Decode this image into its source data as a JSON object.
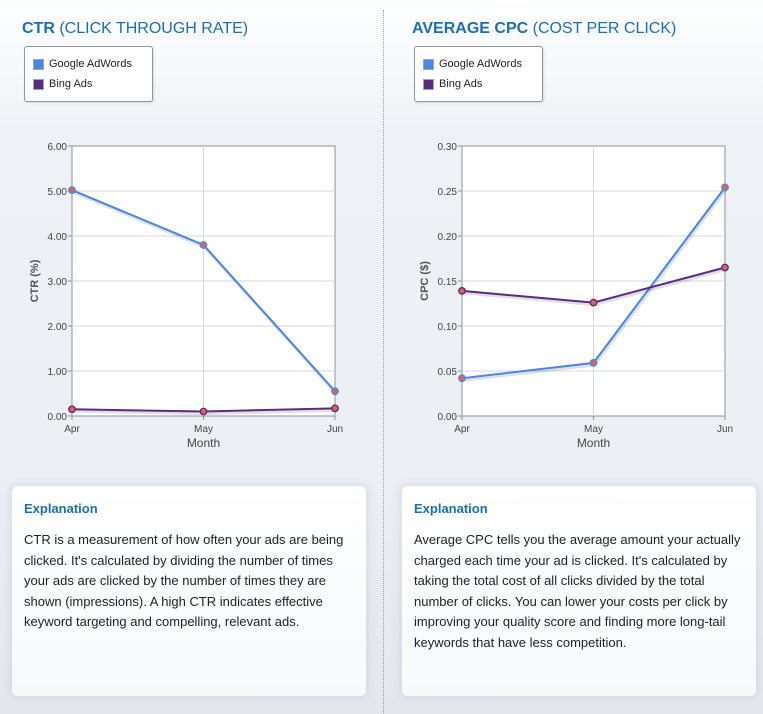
{
  "colors": {
    "google": "#4a86e8",
    "bing": "#5b2a86",
    "title": "#1a6fb5",
    "marker_fill": "#e0654a"
  },
  "ctr": {
    "title_bold": "CTR",
    "title_rest": " (CLICK THROUGH RATE)",
    "legend": [
      "Google AdWords",
      "Bing Ads"
    ],
    "explanation_heading": "Explanation",
    "explanation_text": "CTR is a measurement of how often your ads are being clicked. It's calculated by dividing the number of times your ads are clicked by the number of times they are shown (impressions). A high CTR indicates effective keyword targeting and compelling, relevant ads."
  },
  "cpc": {
    "title_bold": "AVERAGE CPC",
    "title_rest": " (COST PER CLICK)",
    "legend": [
      "Google AdWords",
      "Bing Ads"
    ],
    "explanation_heading": "Explanation",
    "explanation_text": "Average CPC tells you the average amount your actually charged each time your ad is clicked. It's calculated by taking the total cost of all clicks divided by the total number of clicks. You can lower your costs per click by improving your quality score and finding more long-tail keywords that have less competition."
  },
  "chart_data": [
    {
      "type": "line",
      "title": "",
      "xlabel": "Month",
      "ylabel": "CTR (%)",
      "categories": [
        "Apr",
        "May",
        "Jun"
      ],
      "x": [
        0,
        1,
        2
      ],
      "ylim": [
        0,
        6
      ],
      "yticks": [
        "0.00",
        "1.00",
        "2.00",
        "3.00",
        "4.00",
        "5.00",
        "6.00"
      ],
      "grid": true,
      "legend_position": "top-left",
      "series": [
        {
          "name": "Google AdWords",
          "values": [
            5.02,
            3.8,
            0.55
          ]
        },
        {
          "name": "Bing Ads",
          "values": [
            0.15,
            0.1,
            0.17
          ]
        }
      ]
    },
    {
      "type": "line",
      "title": "",
      "xlabel": "Month",
      "ylabel": "CPC ($)",
      "categories": [
        "Apr",
        "May",
        "Jun"
      ],
      "x": [
        0,
        1,
        2
      ],
      "ylim": [
        0,
        0.3
      ],
      "yticks": [
        "0.00",
        "0.05",
        "0.10",
        "0.15",
        "0.20",
        "0.25",
        "0.30"
      ],
      "grid": true,
      "legend_position": "top-left",
      "series": [
        {
          "name": "Google AdWords",
          "values": [
            0.042,
            0.059,
            0.254
          ]
        },
        {
          "name": "Bing Ads",
          "values": [
            0.139,
            0.126,
            0.165
          ]
        }
      ]
    }
  ]
}
